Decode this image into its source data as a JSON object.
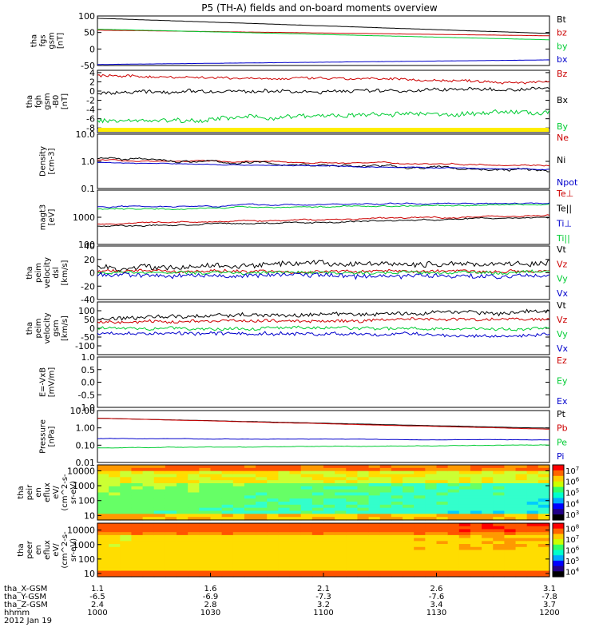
{
  "title": "P5 (TH-A) fields and on-board moments overview",
  "colors": {
    "black": "#000000",
    "red": "#cc0000",
    "green": "#00cc33",
    "blue": "#0000cc",
    "yellow": "#ffee00"
  },
  "chart_data": [
    {
      "type": "line",
      "panel": "fgs",
      "ylabel": [
        "tha",
        "fgs",
        "gsm",
        "[nT]"
      ],
      "ylim": [
        -50,
        100
      ],
      "yticks": [
        {
          "v": 100,
          "label": "100"
        },
        {
          "v": 50,
          "label": "50"
        },
        {
          "v": 0,
          "label": "0"
        },
        {
          "v": -50,
          "label": "-50"
        }
      ],
      "series": [
        {
          "name": "Bt",
          "color": "black",
          "start": 93,
          "end": 47,
          "noise": 0.4
        },
        {
          "name": "bz",
          "color": "red",
          "start": 57,
          "end": 40,
          "noise": 0.4
        },
        {
          "name": "by",
          "color": "green",
          "start": 60,
          "end": 28,
          "noise": 0.4
        },
        {
          "name": "bx",
          "color": "blue",
          "start": -47,
          "end": -33,
          "noise": 0.4
        }
      ]
    },
    {
      "type": "line",
      "panel": "fgh",
      "ylabel": [
        "tha",
        "fgh",
        "gsm",
        "-B0",
        "[nT]"
      ],
      "ylim": [
        -9,
        4.5
      ],
      "yticks": [
        {
          "v": 4,
          "label": "4"
        },
        {
          "v": 2,
          "label": "2"
        },
        {
          "v": 0,
          "label": "0"
        },
        {
          "v": -2,
          "label": "-2"
        },
        {
          "v": -4,
          "label": "-4"
        },
        {
          "v": -6,
          "label": "-6"
        },
        {
          "v": -8,
          "label": "-8"
        }
      ],
      "series": [
        {
          "name": "Bz",
          "color": "red",
          "start": 3.3,
          "end": 2.0,
          "noise": 0.5
        },
        {
          "name": "Bx",
          "color": "black",
          "start": -0.5,
          "end": 0.5,
          "noise": 0.7
        },
        {
          "name": "By",
          "color": "green",
          "start": -6.5,
          "end": -4.5,
          "noise": 0.9
        }
      ]
    },
    {
      "type": "line",
      "panel": "density",
      "scale": "log",
      "ylabel": [
        "Density",
        "[cm-3]"
      ],
      "ylim": [
        0.1,
        10
      ],
      "yticks": [
        {
          "v": 10,
          "label": "10.0"
        },
        {
          "v": 1,
          "label": "1.0"
        },
        {
          "v": 0.1,
          "label": "0.1"
        }
      ],
      "series": [
        {
          "name": "Ne",
          "color": "red",
          "start": 1.1,
          "end": 0.75,
          "noise": 0.05
        },
        {
          "name": "Ni",
          "color": "black",
          "start": 1.2,
          "end": 0.45,
          "noise": 0.1
        },
        {
          "name": "Npot",
          "color": "blue",
          "start": 0.9,
          "end": 0.5,
          "noise": 0.03
        }
      ]
    },
    {
      "type": "line",
      "panel": "temperature",
      "scale": "log",
      "ylabel": [
        "magt3",
        "[eV]"
      ],
      "ylim": [
        100,
        10000
      ],
      "yticks": [
        {
          "v": 1000,
          "label": "1000"
        },
        {
          "v": 100,
          "label": "100"
        }
      ],
      "series": [
        {
          "name": "Te⊥",
          "color": "red",
          "start": 550,
          "end": 1200,
          "noise": 0.06
        },
        {
          "name": "Te||",
          "color": "black",
          "start": 450,
          "end": 1000,
          "noise": 0.06
        },
        {
          "name": "Ti⊥",
          "color": "blue",
          "start": 2500,
          "end": 3500,
          "noise": 0.05
        },
        {
          "name": "Ti||",
          "color": "green",
          "start": 2000,
          "end": 3000,
          "noise": 0.05
        }
      ]
    },
    {
      "type": "line",
      "panel": "velocity_dsl",
      "ylabel": [
        "tha",
        "peim",
        "velocity",
        "dsl",
        "[km/s]"
      ],
      "ylim": [
        -40,
        40
      ],
      "yticks": [
        {
          "v": 40,
          "label": "40"
        },
        {
          "v": 20,
          "label": "20"
        },
        {
          "v": 0,
          "label": "0"
        },
        {
          "v": -20,
          "label": "-20"
        },
        {
          "v": -40,
          "label": "-40"
        }
      ],
      "series": [
        {
          "name": "Vt",
          "color": "black",
          "start": 8,
          "end": 15,
          "noise": 7
        },
        {
          "name": "Vz",
          "color": "red",
          "start": 2,
          "end": 3,
          "noise": 4
        },
        {
          "name": "Vy",
          "color": "green",
          "start": 0,
          "end": 0,
          "noise": 4
        },
        {
          "name": "Vx",
          "color": "blue",
          "start": -3,
          "end": -5,
          "noise": 6
        }
      ]
    },
    {
      "type": "line",
      "panel": "velocity_gsm",
      "ylabel": [
        "tha",
        "peim",
        "velocity",
        "gsm",
        "[km/s]"
      ],
      "ylim": [
        -150,
        150
      ],
      "yticks": [
        {
          "v": 100,
          "label": "100"
        },
        {
          "v": 50,
          "label": "50"
        },
        {
          "v": 0,
          "label": "0"
        },
        {
          "v": -50,
          "label": "-50"
        },
        {
          "v": -100,
          "label": "-100"
        }
      ],
      "series": [
        {
          "name": "Vt",
          "color": "black",
          "start": 60,
          "end": 95,
          "noise": 20
        },
        {
          "name": "Vz",
          "color": "red",
          "start": 35,
          "end": 55,
          "noise": 15
        },
        {
          "name": "Vy",
          "color": "green",
          "start": 0,
          "end": 0,
          "noise": 15
        },
        {
          "name": "Vx",
          "color": "blue",
          "start": -25,
          "end": -40,
          "noise": 18
        }
      ]
    },
    {
      "type": "line",
      "panel": "efield",
      "ylabel": [
        "E=-VxB",
        "[mV/m]"
      ],
      "ylim": [
        -1,
        1
      ],
      "yticks": [
        {
          "v": 1,
          "label": "1.0"
        },
        {
          "v": 0.5,
          "label": "0.5"
        },
        {
          "v": 0,
          "label": "0.0"
        },
        {
          "v": -0.5,
          "label": "-0.5"
        },
        {
          "v": -1,
          "label": "-1.0"
        }
      ],
      "series": [
        {
          "name": "Ez",
          "color": "red",
          "start": null,
          "end": null
        },
        {
          "name": "Ey",
          "color": "green",
          "start": null,
          "end": null
        },
        {
          "name": "Ex",
          "color": "blue",
          "start": null,
          "end": null
        }
      ]
    },
    {
      "type": "line",
      "panel": "pressure",
      "scale": "log",
      "ylabel": [
        "Pressure",
        "[nPa]"
      ],
      "ylim": [
        0.01,
        10
      ],
      "yticks": [
        {
          "v": 10,
          "label": "10.00"
        },
        {
          "v": 1,
          "label": "1.00"
        },
        {
          "v": 0.1,
          "label": "0.10"
        },
        {
          "v": 0.01,
          "label": "0.01"
        }
      ],
      "series": [
        {
          "name": "Pt",
          "color": "black",
          "start": 3.6,
          "end": 0.95,
          "noise": 0.01
        },
        {
          "name": "Pb",
          "color": "red",
          "start": 3.6,
          "end": 0.85,
          "noise": 0.01
        },
        {
          "name": "Pe",
          "color": "green",
          "start": 0.07,
          "end": 0.1,
          "noise": 0.03
        },
        {
          "name": "Pi",
          "color": "blue",
          "start": 0.24,
          "end": 0.2,
          "noise": 0.02
        }
      ]
    },
    {
      "type": "heatmap",
      "panel": "peir_spectrogram",
      "ylabel": [
        "tha",
        "peir",
        "en",
        "eflux",
        "eV/",
        "(cm^2-s-",
        "sr-eV)"
      ],
      "scale": "log",
      "ylim": [
        5,
        25000
      ],
      "yticks": [
        {
          "v": 10000,
          "label": "10000"
        },
        {
          "v": 1000,
          "label": "1000"
        },
        {
          "v": 100,
          "label": "100"
        },
        {
          "v": 10,
          "label": "10"
        }
      ],
      "colorbar": {
        "range": [
          3,
          7
        ],
        "ticks": [
          "10^3",
          "10^4",
          "10^5",
          "10^6",
          "10^7"
        ]
      }
    },
    {
      "type": "heatmap",
      "panel": "peer_spectrogram",
      "ylabel": [
        "tha",
        "peer",
        "en",
        "eflux",
        "eV/",
        "(cm^2-s-",
        "sr-eV)"
      ],
      "scale": "log",
      "ylim": [
        6,
        30000
      ],
      "yticks": [
        {
          "v": 10000,
          "label": "10000"
        },
        {
          "v": 1000,
          "label": "1000"
        },
        {
          "v": 100,
          "label": "100"
        },
        {
          "v": 10,
          "label": "10"
        }
      ],
      "colorbar": {
        "range": [
          4,
          8
        ],
        "ticks": [
          "10^4",
          "10^5",
          "10^6",
          "10^7",
          "10^8"
        ]
      }
    }
  ],
  "xaxis": {
    "row_labels": [
      "tha_X-GSM",
      "tha_Y-GSM",
      "tha_Z-GSM",
      "hhmm",
      "2012 Jan 19"
    ],
    "ticks": [
      {
        "t": 0,
        "vals": [
          "1.1",
          "-6.5",
          "2.4",
          "1000"
        ]
      },
      {
        "t": 0.25,
        "vals": [
          "1.6",
          "-6.9",
          "2.8",
          "1030"
        ]
      },
      {
        "t": 0.5,
        "vals": [
          "2.1",
          "-7.3",
          "3.2",
          "1100"
        ]
      },
      {
        "t": 0.75,
        "vals": [
          "2.6",
          "-7.6",
          "3.4",
          "1130"
        ]
      },
      {
        "t": 1,
        "vals": [
          "3.1",
          "-7.8",
          "3.7",
          "1200"
        ]
      }
    ]
  }
}
